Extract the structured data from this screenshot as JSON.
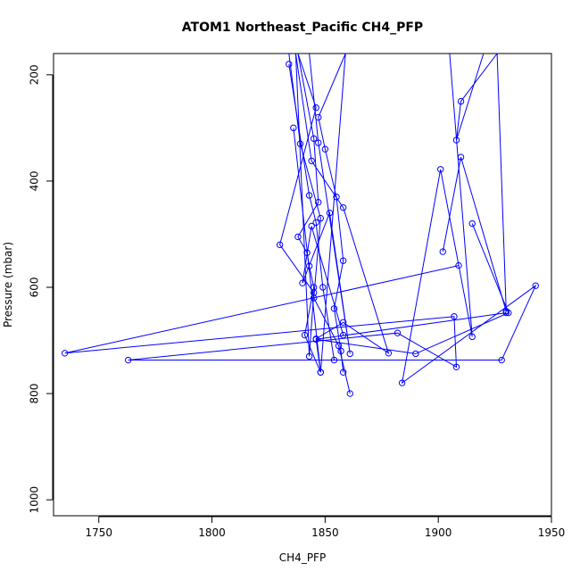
{
  "chart_data": {
    "type": "scatter",
    "title": "ATOM1 Northeast_Pacific CH4_PFP",
    "xlabel": "CH4_PFP",
    "ylabel": "Pressure (mbar)",
    "xlim": [
      1730,
      1950
    ],
    "ylim": [
      1030,
      160
    ],
    "y_reversed": true,
    "x_ticks": [
      1750,
      1800,
      1850,
      1900,
      1950
    ],
    "y_ticks": [
      200,
      400,
      600,
      800,
      1000
    ],
    "grid": false,
    "color": "#0000ff",
    "series": [
      {
        "x": [
          1838,
          1845,
          1847,
          1838,
          1842,
          1843,
          1845,
          1841,
          1848,
          1859,
          1847,
          1850,
          1855,
          1858,
          1854,
          1857,
          1858
        ],
        "y": [
          160,
          320,
          440,
          505,
          535,
          560,
          600,
          690,
          760,
          160,
          280,
          340,
          430,
          550,
          640,
          720,
          760
        ]
      },
      {
        "x": [
          1834,
          1839,
          1848,
          1845,
          1856,
          1861
        ],
        "y": [
          160,
          330,
          470,
          620,
          710,
          800
        ]
      },
      {
        "x": [
          1834,
          1843,
          1846,
          1849,
          1854
        ],
        "y": [
          180,
          427,
          478,
          600,
          737
        ]
      },
      {
        "x": [
          1837,
          1844,
          1858,
          1878,
          1858,
          1846,
          1848,
          1836
        ],
        "y": [
          160,
          362,
          450,
          724,
          666,
          697,
          760,
          300
        ]
      },
      {
        "x": [
          1843,
          1847,
          1861,
          1852,
          1840,
          1844,
          1858
        ],
        "y": [
          160,
          328,
          725,
          460,
          592,
          485,
          690
        ]
      },
      {
        "x": [
          1838,
          1846,
          1830,
          1845,
          1843,
          1837
        ],
        "y": [
          160,
          262,
          520,
          610,
          730,
          160
        ]
      },
      {
        "x": [
          1909,
          1735,
          1907,
          1908,
          1882,
          1763,
          1928,
          1943,
          1884,
          1901,
          1915,
          1905
        ],
        "y": [
          559,
          724,
          655,
          750,
          686,
          737,
          737,
          597,
          780,
          378,
          693,
          160
        ]
      },
      {
        "x": [
          1902,
          1910,
          1930,
          1926,
          1910,
          1908,
          1920
        ],
        "y": [
          533,
          355,
          645,
          160,
          250,
          323,
          160
        ]
      },
      {
        "x": [
          1915,
          1931,
          1890,
          1846,
          1930
        ],
        "y": [
          480,
          648,
          725,
          698,
          648
        ]
      }
    ]
  }
}
